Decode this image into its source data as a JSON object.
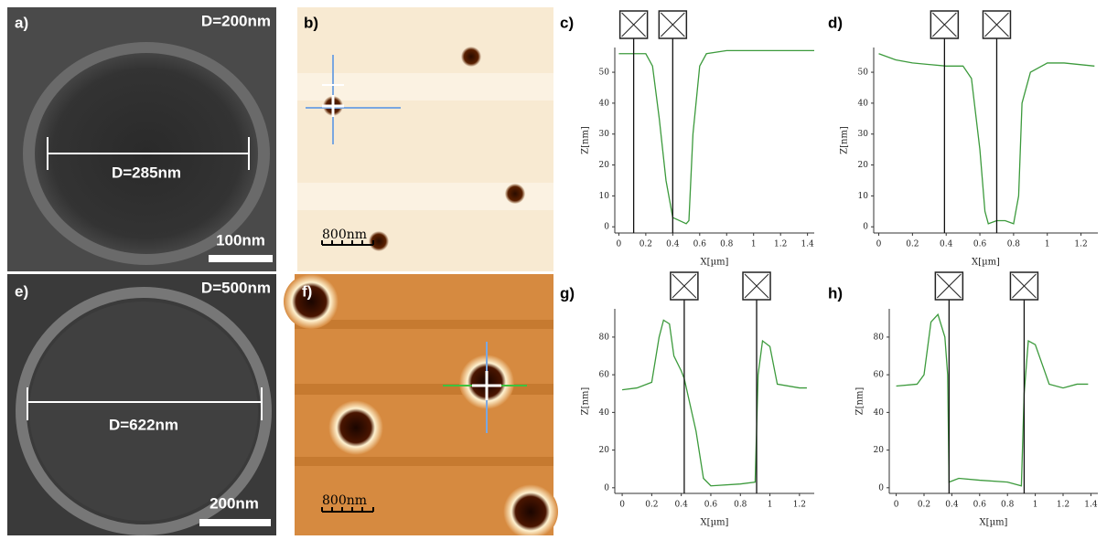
{
  "panels": {
    "a": {
      "label": "a)",
      "diameter_label": "D=200nm",
      "measure_label": "D=285nm",
      "scale_label": "100nm"
    },
    "b": {
      "label": "b)",
      "scale_label": "800nm"
    },
    "e": {
      "label": "e)",
      "diameter_label": "D=500nm",
      "measure_label": "D=622nm",
      "scale_label": "200nm"
    },
    "f": {
      "label": "f)",
      "scale_label": "800nm"
    }
  },
  "chart_data": [
    {
      "type": "line",
      "label": "c)",
      "xlabel": "X[µm]",
      "ylabel": "Z[nm]",
      "x": [
        0,
        0.2,
        0.25,
        0.3,
        0.35,
        0.4,
        0.45,
        0.5,
        0.52,
        0.55,
        0.6,
        0.65,
        0.8,
        1.0,
        1.2,
        1.45
      ],
      "series": [
        {
          "color": "#3c9a3c",
          "values": [
            56,
            56,
            52,
            35,
            15,
            3,
            2,
            1,
            2,
            30,
            52,
            56,
            57,
            57,
            57,
            57
          ]
        }
      ],
      "xlim": [
        -0.03,
        1.45
      ],
      "ylim": [
        -2,
        58
      ],
      "xticks": [
        0,
        0.2,
        0.4,
        0.6,
        0.8,
        1,
        1.2,
        1.4
      ],
      "yticks": [
        0,
        10,
        20,
        30,
        40,
        50
      ],
      "cursors": [
        0.11,
        0.4
      ]
    },
    {
      "type": "line",
      "label": "d)",
      "xlabel": "X[µm]",
      "ylabel": "Z[nm]",
      "x": [
        0,
        0.1,
        0.2,
        0.4,
        0.5,
        0.55,
        0.6,
        0.63,
        0.65,
        0.7,
        0.75,
        0.8,
        0.83,
        0.85,
        0.9,
        1.0,
        1.1,
        1.28
      ],
      "series": [
        {
          "color": "#3c9a3c",
          "values": [
            56,
            54,
            53,
            52,
            52,
            48,
            25,
            5,
            1,
            2,
            2,
            1,
            10,
            40,
            50,
            53,
            53,
            52
          ]
        }
      ],
      "xlim": [
        -0.03,
        1.3
      ],
      "ylim": [
        -2,
        58
      ],
      "xticks": [
        0,
        0.2,
        0.4,
        0.6,
        0.8,
        1,
        1.2
      ],
      "yticks": [
        0,
        10,
        20,
        30,
        40,
        50
      ],
      "cursors": [
        0.39,
        0.7
      ]
    },
    {
      "type": "line",
      "label": "g)",
      "xlabel": "X[µm]",
      "ylabel": "Z[nm]",
      "x": [
        0,
        0.1,
        0.2,
        0.25,
        0.28,
        0.32,
        0.35,
        0.4,
        0.42,
        0.5,
        0.55,
        0.6,
        0.8,
        0.9,
        0.92,
        0.95,
        1.0,
        1.05,
        1.2,
        1.25
      ],
      "series": [
        {
          "color": "#3c9a3c",
          "values": [
            52,
            53,
            56,
            80,
            89,
            87,
            70,
            62,
            58,
            30,
            5,
            1,
            2,
            3,
            60,
            78,
            75,
            55,
            53,
            53
          ]
        }
      ],
      "xlim": [
        -0.05,
        1.3
      ],
      "ylim": [
        -3,
        95
      ],
      "xticks": [
        0,
        0.2,
        0.4,
        0.6,
        0.8,
        1,
        1.2
      ],
      "yticks": [
        0,
        20,
        40,
        60,
        80
      ],
      "cursors": [
        0.42,
        0.91
      ]
    },
    {
      "type": "line",
      "label": "h)",
      "xlabel": "X[µm]",
      "ylabel": "Z[nm]",
      "x": [
        0,
        0.15,
        0.2,
        0.25,
        0.3,
        0.35,
        0.37,
        0.38,
        0.45,
        0.6,
        0.8,
        0.9,
        0.92,
        0.95,
        1.0,
        1.1,
        1.2,
        1.3,
        1.38
      ],
      "series": [
        {
          "color": "#3c9a3c",
          "values": [
            54,
            55,
            60,
            88,
            92,
            80,
            60,
            3,
            5,
            4,
            3,
            1,
            50,
            78,
            76,
            55,
            53,
            55,
            55
          ]
        }
      ],
      "xlim": [
        -0.05,
        1.45
      ],
      "ylim": [
        -3,
        95
      ],
      "xticks": [
        0,
        0.2,
        0.4,
        0.6,
        0.8,
        1,
        1.2,
        1.4
      ],
      "yticks": [
        0,
        20,
        40,
        60,
        80
      ],
      "cursors": [
        0.38,
        0.92
      ]
    }
  ]
}
